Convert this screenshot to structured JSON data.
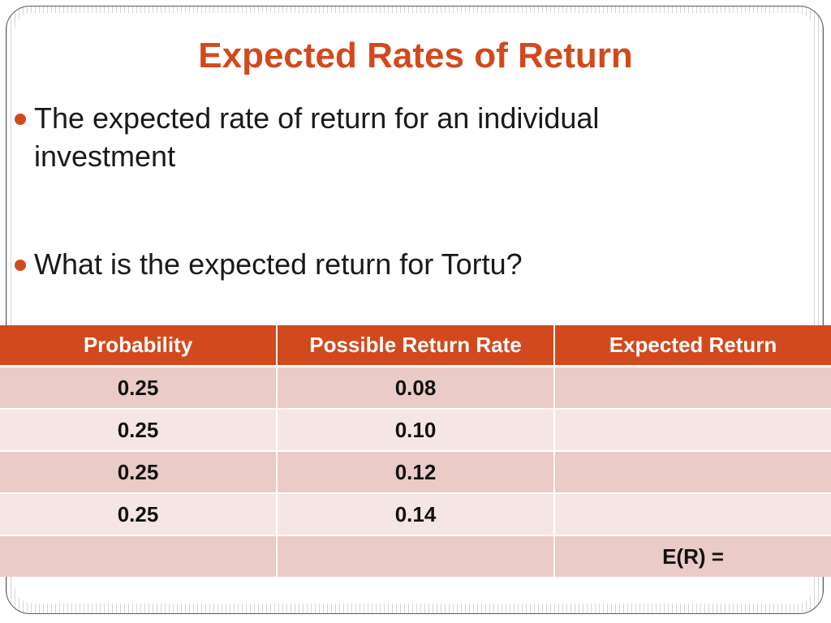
{
  "slide": {
    "title": "Expected Rates of Return",
    "bullets": [
      "The expected rate of return for an individual investment",
      "What is the expected return for Tortu?"
    ]
  },
  "table": {
    "headers": [
      "Probability",
      "Possible Return Rate",
      "Expected Return"
    ],
    "rows": [
      [
        "0.25",
        "0.08",
        ""
      ],
      [
        "0.25",
        "0.10",
        ""
      ],
      [
        "0.25",
        "0.12",
        ""
      ],
      [
        "0.25",
        "0.14",
        ""
      ],
      [
        "",
        "",
        "E(R) ="
      ]
    ]
  },
  "colors": {
    "accent": "#d2491d",
    "row_dark": "#eacbc7",
    "row_light": "#f5e6e3"
  }
}
